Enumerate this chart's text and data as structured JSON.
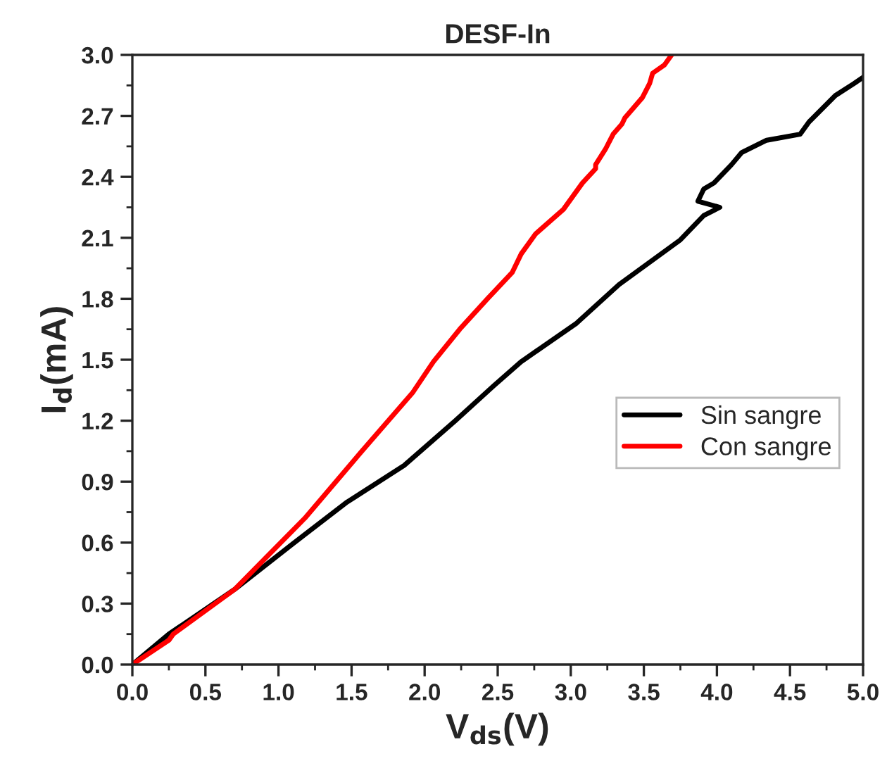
{
  "chart_data": {
    "type": "line",
    "title": "DESF-In",
    "xlabel": "V$_{ds}$(V)",
    "ylabel": "I$_{d}$(mA)",
    "xlim": [
      0,
      5.0
    ],
    "xticks": [
      {
        "value": 0,
        "label": "0.0"
      },
      0.5,
      {
        "value": 1,
        "label": "1.0"
      },
      1.5,
      {
        "value": 2,
        "label": "2.0"
      },
      2.5,
      {
        "value": 3,
        "label": "3.0"
      },
      3.5,
      {
        "value": 4,
        "label": "4.0"
      },
      4.5,
      {
        "value": 5,
        "label": "5.0"
      }
    ],
    "ylim": [
      0,
      3.0
    ],
    "yticks": [
      {
        "value": 0,
        "label": "0.0"
      },
      0.3,
      0.6,
      0.9,
      1.2,
      1.5,
      1.8,
      2.1,
      2.4,
      2.7,
      {
        "value": 3,
        "label": "3.0"
      }
    ],
    "grid": false,
    "legend": "right",
    "marker": "none",
    "line_style": "solid",
    "series": [
      {
        "name": "Sin sangre",
        "color": "#000000",
        "x": [
          0,
          0.25,
          0.7,
          1.09,
          1.47,
          1.86,
          2.21,
          2.47,
          2.66,
          3.04,
          3.33,
          3.75,
          3.91,
          4.02,
          3.87,
          3.91,
          3.98,
          4.1,
          4.17,
          4.34,
          4.57,
          4.63,
          4.81,
          4.94,
          5.0
        ],
        "values": [
          0,
          0.15,
          0.37,
          0.59,
          0.8,
          0.98,
          1.2,
          1.37,
          1.49,
          1.68,
          1.87,
          2.09,
          2.21,
          2.25,
          2.28,
          2.34,
          2.37,
          2.46,
          2.52,
          2.58,
          2.61,
          2.67,
          2.8,
          2.86,
          2.89
        ]
      },
      {
        "name": "Con sangre",
        "color": "#ff0000",
        "x": [
          0,
          0.25,
          0.28,
          0.7,
          1.18,
          1.57,
          1.92,
          2.06,
          2.24,
          2.43,
          2.6,
          2.66,
          2.76,
          2.95,
          3.08,
          3.17,
          3.17,
          3.24,
          3.29,
          3.35,
          3.37,
          3.49,
          3.54,
          3.56,
          3.64,
          3.69
        ],
        "values": [
          0,
          0.12,
          0.15,
          0.37,
          0.72,
          1.05,
          1.34,
          1.49,
          1.65,
          1.8,
          1.93,
          2.02,
          2.12,
          2.24,
          2.37,
          2.44,
          2.46,
          2.54,
          2.61,
          2.66,
          2.69,
          2.79,
          2.86,
          2.91,
          2.95,
          3.0
        ]
      }
    ]
  }
}
